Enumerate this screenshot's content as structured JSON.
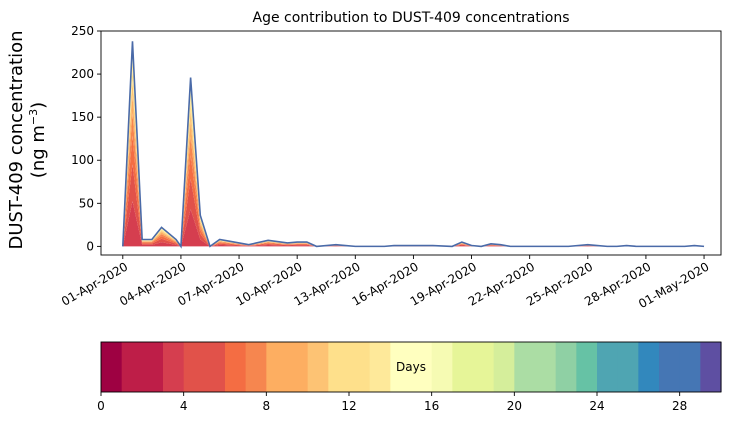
{
  "chart_data": {
    "type": "area",
    "title": "Age contribution to DUST-409 concentrations",
    "ylabel_line1": "DUST-409 concentration",
    "ylabel_line2": "(ng m",
    "ylabel_sup": "−3",
    "ylabel_close": ")",
    "ylim": [
      -10,
      250
    ],
    "yticks": [
      0,
      50,
      100,
      150,
      200,
      250
    ],
    "xlim": [
      "2020-03-30T21:00",
      "2020-05-01T21:00"
    ],
    "xticks": [
      {
        "date": "2020-04-01",
        "label": "01-Apr-2020"
      },
      {
        "date": "2020-04-04",
        "label": "04-Apr-2020"
      },
      {
        "date": "2020-04-07",
        "label": "07-Apr-2020"
      },
      {
        "date": "2020-04-10",
        "label": "10-Apr-2020"
      },
      {
        "date": "2020-04-13",
        "label": "13-Apr-2020"
      },
      {
        "date": "2020-04-16",
        "label": "16-Apr-2020"
      },
      {
        "date": "2020-04-19",
        "label": "19-Apr-2020"
      },
      {
        "date": "2020-04-22",
        "label": "22-Apr-2020"
      },
      {
        "date": "2020-04-25",
        "label": "25-Apr-2020"
      },
      {
        "date": "2020-04-28",
        "label": "28-Apr-2020"
      },
      {
        "date": "2020-05-01",
        "label": "01-May-2020"
      }
    ],
    "series_total": {
      "x": [
        "2020-04-01T00:00",
        "2020-04-01T12:00",
        "2020-04-02T00:00",
        "2020-04-02T12:00",
        "2020-04-03T00:00",
        "2020-04-03T18:00",
        "2020-04-04T00:00",
        "2020-04-04T12:00",
        "2020-04-05T00:00",
        "2020-04-05T12:00",
        "2020-04-06T00:00",
        "2020-04-06T12:00",
        "2020-04-07T00:00",
        "2020-04-07T12:00",
        "2020-04-08T12:00",
        "2020-04-09T12:00",
        "2020-04-10T00:00",
        "2020-04-10T12:00",
        "2020-04-11T00:00",
        "2020-04-12T00:00",
        "2020-04-12T12:00",
        "2020-04-13T00:00",
        "2020-04-13T12:00",
        "2020-04-14T12:00",
        "2020-04-15T00:00",
        "2020-04-16T00:00",
        "2020-04-17T00:00",
        "2020-04-18T00:00",
        "2020-04-18T12:00",
        "2020-04-19T00:00",
        "2020-04-19T12:00",
        "2020-04-20T00:00",
        "2020-04-20T12:00",
        "2020-04-21T00:00",
        "2020-04-21T12:00",
        "2020-04-22T00:00",
        "2020-04-22T12:00",
        "2020-04-23T00:00",
        "2020-04-24T00:00",
        "2020-04-25T00:00",
        "2020-04-25T12:00",
        "2020-04-26T00:00",
        "2020-04-26T12:00",
        "2020-04-27T00:00",
        "2020-04-27T12:00",
        "2020-04-28T00:00",
        "2020-04-28T12:00",
        "2020-04-29T00:00",
        "2020-04-30T00:00",
        "2020-04-30T12:00",
        "2020-05-01T00:00"
      ],
      "y": [
        0,
        238,
        8,
        8,
        22,
        8,
        0,
        196,
        36,
        0,
        8,
        6,
        4,
        2,
        7,
        4,
        5,
        5,
        0,
        2,
        1,
        0,
        0,
        0,
        1,
        1,
        1,
        0,
        5,
        1,
        0,
        3,
        2,
        0,
        0,
        0,
        0,
        0,
        0,
        2,
        1,
        0,
        0,
        1,
        0,
        0,
        0,
        0,
        0,
        1,
        0
      ]
    },
    "layer_fractions": [
      0.22,
      0.18,
      0.14,
      0.11,
      0.09,
      0.07,
      0.06,
      0.05,
      0.04,
      0.02,
      0.02
    ],
    "colorbar": {
      "label": "Days",
      "min": 0,
      "max": 30,
      "ticks": [
        0,
        4,
        8,
        12,
        16,
        20,
        24,
        28
      ],
      "colors": [
        "#9e0142",
        "#be1e48",
        "#d53e4f",
        "#e1524a",
        "#f46d43",
        "#f6864f",
        "#fdae61",
        "#fdc374",
        "#fee08b",
        "#fee99a",
        "#ffffbf",
        "#f6fbb3",
        "#e6f598",
        "#d5ee9b",
        "#abdda4",
        "#8fd0a4",
        "#66c2a5",
        "#4fa5b2",
        "#3288bd",
        "#4576b4",
        "#5e4fa2"
      ],
      "segments": 30
    },
    "line_color": "#4a6aa8"
  }
}
